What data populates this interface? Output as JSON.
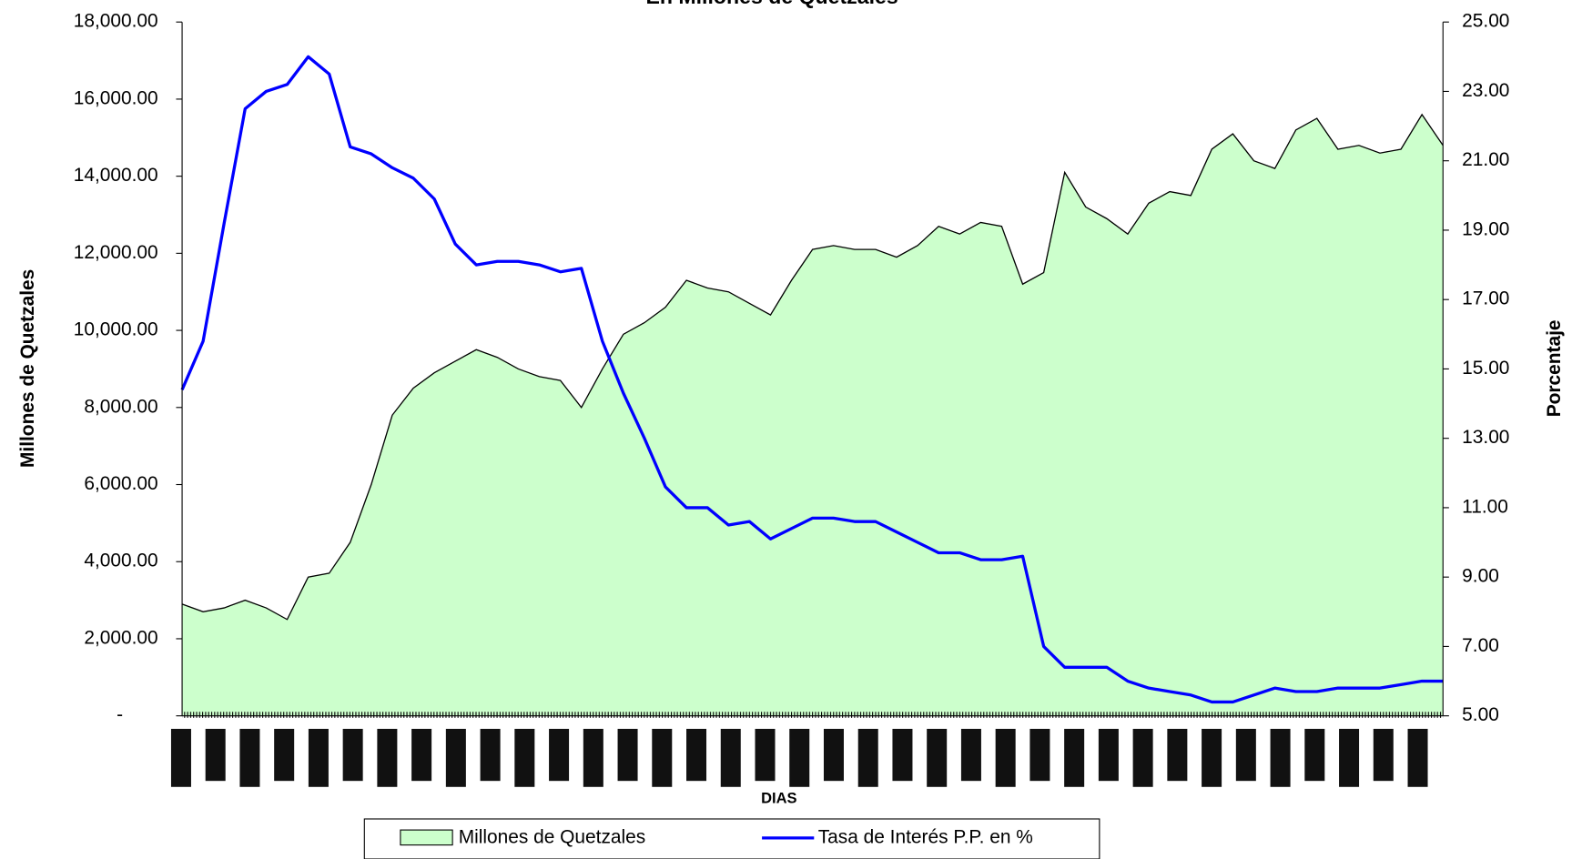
{
  "chart_data": {
    "type": "area",
    "title": "En Millones de Quetzales",
    "x_label": "DIAS",
    "y_label": "Millones de Quetzales",
    "y2_label": "Porcentaje",
    "ylim": [
      0,
      18000
    ],
    "yticks": [
      {
        "value": 0,
        "label": "-"
      },
      {
        "value": 2000,
        "label": "2,000.00"
      },
      {
        "value": 4000,
        "label": "4,000.00"
      },
      {
        "value": 6000,
        "label": "6,000.00"
      },
      {
        "value": 8000,
        "label": "8,000.00"
      },
      {
        "value": 10000,
        "label": "10,000.00"
      },
      {
        "value": 12000,
        "label": "12,000.00"
      },
      {
        "value": 14000,
        "label": "14,000.00"
      },
      {
        "value": 16000,
        "label": "16,000.00"
      },
      {
        "value": 18000,
        "label": "18,000.00"
      }
    ],
    "y2lim": [
      5,
      25
    ],
    "y2ticks": [
      {
        "value": 5,
        "label": "5.00"
      },
      {
        "value": 7,
        "label": "7.00"
      },
      {
        "value": 9,
        "label": "9.00"
      },
      {
        "value": 11,
        "label": "11.00"
      },
      {
        "value": 13,
        "label": "13.00"
      },
      {
        "value": 15,
        "label": "15.00"
      },
      {
        "value": 17,
        "label": "17.00"
      },
      {
        "value": 19,
        "label": "19.00"
      },
      {
        "value": 21,
        "label": "21.00"
      },
      {
        "value": 23,
        "label": "23.00"
      },
      {
        "value": 25,
        "label": "25.00"
      }
    ],
    "series": [
      {
        "name": "Millones de Quetzales",
        "color": "#ccffcc",
        "line_color": "#000000",
        "values": [
          2900,
          2700,
          2800,
          3000,
          2800,
          2500,
          3600,
          3700,
          4500,
          6000,
          7800,
          8500,
          8900,
          9200,
          9500,
          9300,
          9000,
          8800,
          8700,
          8000,
          9000,
          9900,
          10200,
          10600,
          11300,
          11100,
          11000,
          10700,
          10400,
          11300,
          12100,
          12200,
          12100,
          12100,
          11900,
          12200,
          12700,
          12500,
          12800,
          12700,
          11200,
          11500,
          14100,
          13200,
          12900,
          12500,
          13300,
          13600,
          13500,
          14700,
          15100,
          14400,
          14200,
          15200,
          15500,
          14700,
          14800,
          14600,
          14700,
          15600,
          14800
        ]
      },
      {
        "name": "Tasa de Interés P.P. en %",
        "color": "#0000ff",
        "type": "line",
        "axis": "y2",
        "values": [
          14.4,
          15.8,
          19.2,
          22.5,
          23.0,
          23.2,
          24.0,
          23.5,
          21.4,
          21.2,
          20.8,
          20.5,
          19.9,
          18.6,
          18.0,
          18.1,
          18.1,
          18.0,
          17.8,
          17.9,
          15.8,
          14.3,
          13.0,
          11.6,
          11.0,
          11.0,
          10.5,
          10.6,
          10.1,
          10.4,
          10.7,
          10.7,
          10.6,
          10.6,
          10.3,
          10.0,
          9.7,
          9.7,
          9.5,
          9.5,
          9.6,
          7.0,
          6.4,
          6.4,
          6.4,
          6.0,
          5.8,
          5.7,
          5.6,
          5.4,
          5.4,
          5.6,
          5.8,
          5.7,
          5.7,
          5.8,
          5.8,
          5.8,
          5.9,
          6.0,
          6.0
        ]
      }
    ]
  }
}
